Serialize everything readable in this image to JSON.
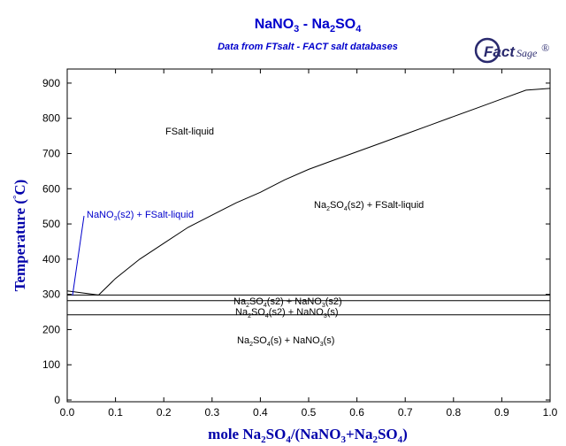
{
  "logo": {
    "brand": "Fact",
    "suffix": "Sage",
    "mark": "®"
  },
  "chart_data": {
    "type": "line",
    "title": "NaNO3 - Na2SO4",
    "title_parts": {
      "a": "NaNO",
      "a_sub": "3",
      "mid": " - Na",
      "b_sub": "2",
      "b": "SO",
      "b_sub2": "4"
    },
    "subtitle": "Data from FTsalt - FACT salt databases",
    "xlabel": "mole Na2SO4/(NaNO3+Na2SO4)",
    "ylabel": "Temperature (°C)",
    "xlim": [
      0,
      1
    ],
    "ylim": [
      0,
      940
    ],
    "x_ticks": [
      "0.0",
      "0.1",
      "0.2",
      "0.3",
      "0.4",
      "0.5",
      "0.6",
      "0.7",
      "0.8",
      "0.9",
      "1.0"
    ],
    "y_ticks": [
      "0",
      "100",
      "200",
      "300",
      "400",
      "500",
      "600",
      "700",
      "800",
      "900"
    ],
    "grid": false,
    "series": [
      {
        "x": [
          0.0,
          0.065
        ],
        "y": [
          310,
          298
        ]
      },
      {
        "x": [
          0.065,
          0.1,
          0.15,
          0.2,
          0.25,
          0.3,
          0.35,
          0.4,
          0.45,
          0.5,
          0.55,
          0.6,
          0.65,
          0.7,
          0.75,
          0.8,
          0.85,
          0.9,
          0.95,
          1.0
        ],
        "y": [
          298,
          345,
          400,
          445,
          490,
          525,
          560,
          590,
          625,
          655,
          680,
          705,
          730,
          755,
          780,
          805,
          830,
          855,
          880,
          885
        ]
      },
      {
        "x": [
          0,
          1
        ],
        "y": [
          298,
          298
        ]
      },
      {
        "x": [
          0,
          1
        ],
        "y": [
          282,
          282
        ]
      },
      {
        "x": [
          0,
          1
        ],
        "y": [
          242,
          242
        ]
      }
    ],
    "labels": {
      "fsalt_liquid": "FSalt-liquid",
      "na2so4_liq": {
        "a": "Na",
        "s1": "2",
        "b": "SO",
        "s2": "4",
        "c": "(s2) + FSalt-liquid"
      },
      "nano3_liq": {
        "a": "NaNO",
        "s1": "3",
        "b": "(s2) + FSalt-liquid"
      },
      "na2so4s2_nano3s2": {
        "a": "Na",
        "s1": "2",
        "b": "SO",
        "s2": "4",
        "c": "(s2) + NaNO",
        "s3": "3",
        "d": "(s2)"
      },
      "na2so4s2_nano3s": {
        "a": "Na",
        "s1": "2",
        "b": "SO",
        "s2": "4",
        "c": "(s2) + NaNO",
        "s3": "3",
        "d": "(s)"
      },
      "na2so4s_nano3s": {
        "a": "Na",
        "s1": "2",
        "b": "SO",
        "s2": "4",
        "c": "(s) + NaNO",
        "s3": "3",
        "d": "(s)"
      }
    },
    "xlabel_parts": {
      "a": "mole Na",
      "s1": "2",
      "b": "SO",
      "s2": "4",
      "c": "/(NaNO",
      "s3": "3",
      "d": "+Na",
      "s4": "2",
      "e": "SO",
      "s5": "4",
      "f": ")"
    },
    "ylabel_parts": {
      "a": "Temperature (",
      "b": "°",
      "c": "C)"
    }
  }
}
